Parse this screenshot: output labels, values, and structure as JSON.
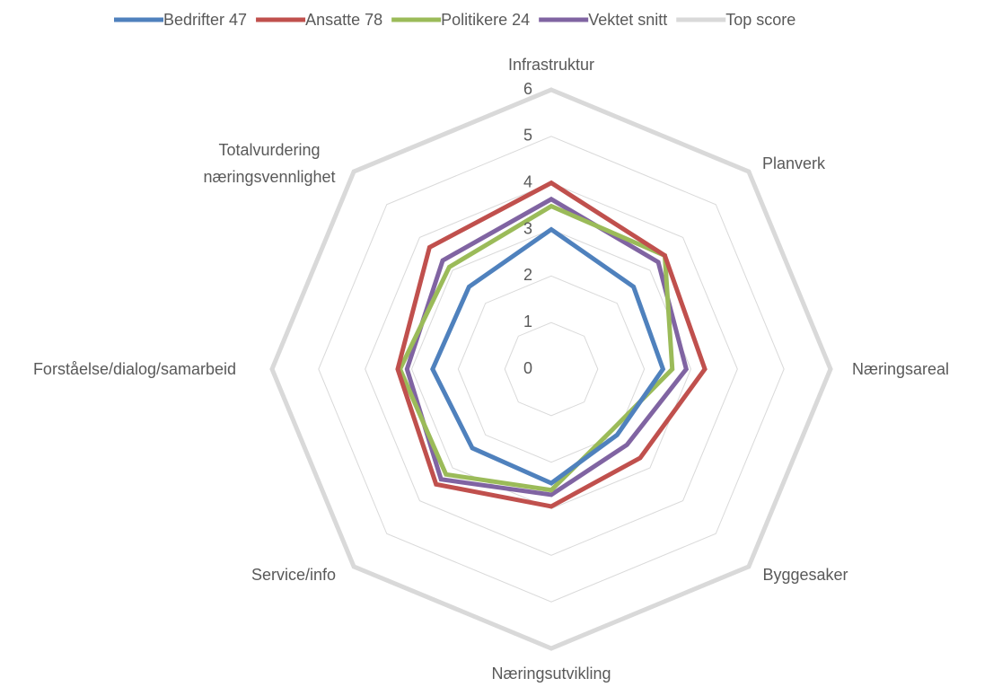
{
  "chart_data": {
    "type": "radar",
    "categories": [
      "Infrastruktur",
      "Planverk",
      "Næringsareal",
      "Byggesaker",
      "Næringsutvikling",
      "Service/info",
      "Forståelse/dialog/samarbeid",
      "Totalvurdering\nnæringsvennlighet"
    ],
    "series": [
      {
        "name": "Bedrifter 47",
        "color": "#4f81bd",
        "values": [
          3.0,
          2.5,
          2.4,
          2.0,
          2.45,
          2.4,
          2.55,
          2.5
        ]
      },
      {
        "name": "Ansatte 78",
        "color": "#c0504d",
        "values": [
          4.0,
          3.45,
          3.3,
          2.7,
          2.95,
          3.5,
          3.3,
          3.7
        ]
      },
      {
        "name": "Politikere 24",
        "color": "#9bbb59",
        "values": [
          3.5,
          3.45,
          2.6,
          1.85,
          2.6,
          3.2,
          3.25,
          3.1
        ]
      },
      {
        "name": "Vektet snitt",
        "color": "#8064a2",
        "values": [
          3.65,
          3.25,
          2.9,
          2.3,
          2.7,
          3.35,
          3.1,
          3.3
        ]
      },
      {
        "name": "Top score",
        "color": "#d9d9d9",
        "values": [
          6,
          6,
          6,
          6,
          6,
          6,
          6,
          6
        ]
      }
    ],
    "ylim": [
      0,
      6
    ],
    "yticks": [
      0,
      1,
      2,
      3,
      4,
      5,
      6
    ],
    "grid": true,
    "legend": "top"
  }
}
